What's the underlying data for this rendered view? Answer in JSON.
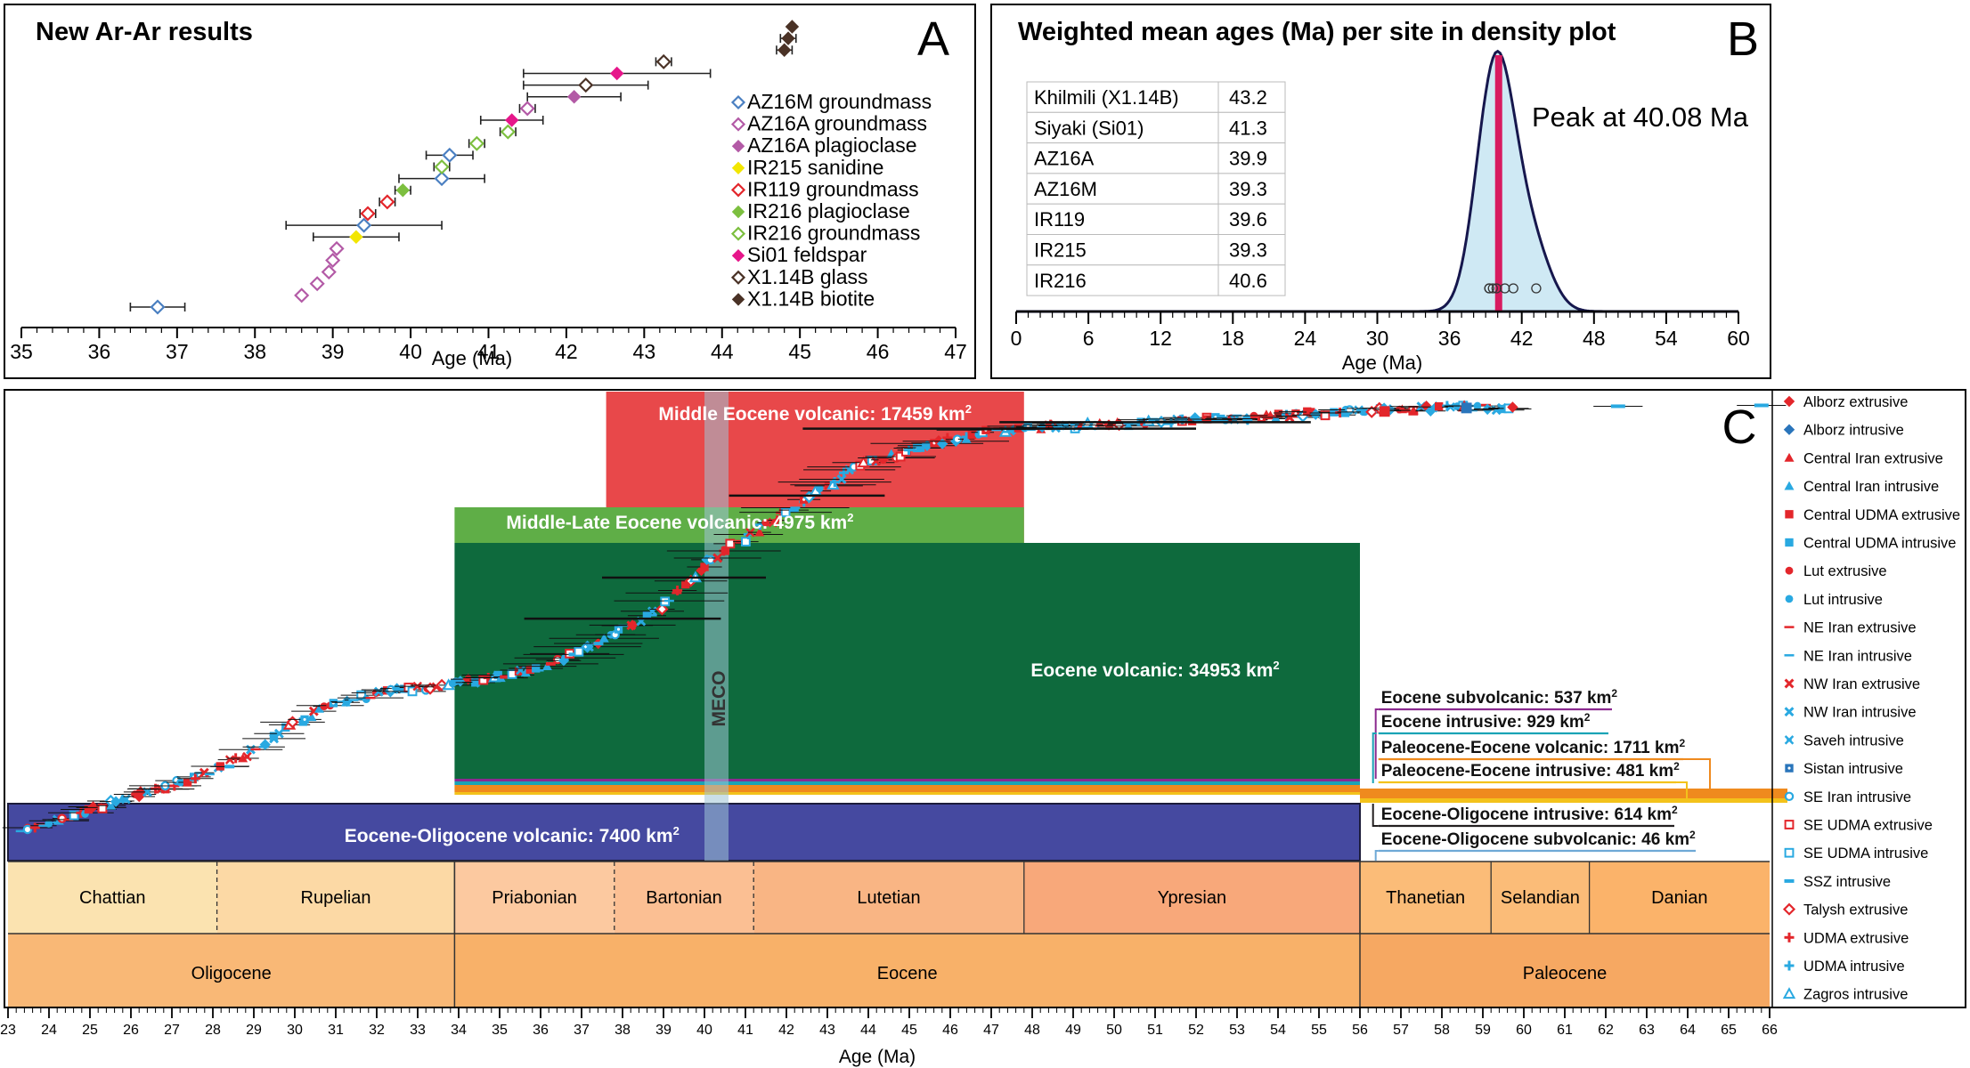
{
  "chart_data": [
    {
      "panel_letter": "A",
      "type": "scatter",
      "title": "New Ar-Ar results",
      "xlabel": "Age (Ma)",
      "ylabel": "",
      "xlim": [
        35,
        47
      ],
      "xticks": [
        "35",
        "36",
        "37",
        "38",
        "39",
        "40",
        "41",
        "42",
        "43",
        "44",
        "45",
        "46",
        "47"
      ],
      "legend_position": "right",
      "series": [
        {
          "name": "AZ16M groundmass",
          "color": "#4a7fc1",
          "marker": "diamond-open",
          "points": [
            {
              "x": 36.75,
              "err": 0.35
            },
            {
              "x": 39.4,
              "err": 1.0
            },
            {
              "x": 40.4,
              "err": 0.55
            },
            {
              "x": 40.5,
              "err": 0.3
            }
          ]
        },
        {
          "name": "AZ16A groundmass",
          "color": "#b35aa6",
          "marker": "diamond-open",
          "points": [
            {
              "x": 38.6,
              "err": 0.05
            },
            {
              "x": 38.8,
              "err": 0.05
            },
            {
              "x": 38.95,
              "err": 0.05
            },
            {
              "x": 39.0,
              "err": 0.05
            },
            {
              "x": 39.05,
              "err": 0.05
            },
            {
              "x": 41.5,
              "err": 0.1
            }
          ]
        },
        {
          "name": "AZ16A plagioclase",
          "color": "#b35aa6",
          "marker": "diamond",
          "points": [
            {
              "x": 42.1,
              "err": 0.6
            }
          ]
        },
        {
          "name": "IR215 sanidine",
          "color": "#f2e600",
          "marker": "diamond",
          "points": [
            {
              "x": 39.3,
              "err": 0.55
            }
          ]
        },
        {
          "name": "IR119 groundmass",
          "color": "#e3262b",
          "marker": "diamond-open",
          "points": [
            {
              "x": 39.45,
              "err": 0.1
            },
            {
              "x": 39.7,
              "err": 0.1
            }
          ]
        },
        {
          "name": "IR216 plagioclase",
          "color": "#7cbf3f",
          "marker": "diamond",
          "points": [
            {
              "x": 39.9,
              "err": 0.1
            }
          ]
        },
        {
          "name": "IR216 groundmass",
          "color": "#7cbf3f",
          "marker": "diamond-open",
          "points": [
            {
              "x": 40.4,
              "err": 0.1
            },
            {
              "x": 40.85,
              "err": 0.1
            },
            {
              "x": 41.25,
              "err": 0.1
            }
          ]
        },
        {
          "name": "Si01 feldspar",
          "color": "#e6168a",
          "marker": "diamond",
          "points": [
            {
              "x": 41.3,
              "err": 0.4
            },
            {
              "x": 42.65,
              "err": 1.2
            }
          ]
        },
        {
          "name": "X1.14B glass",
          "color": "#4a3226",
          "marker": "diamond-open",
          "points": [
            {
              "x": 42.25,
              "err": 0.8
            },
            {
              "x": 43.25,
              "err": 0.1
            }
          ]
        },
        {
          "name": "X1.14B biotite",
          "color": "#4a3226",
          "marker": "diamond",
          "points": [
            {
              "x": 44.8,
              "err": 0.1
            },
            {
              "x": 44.85,
              "err": 0.1
            },
            {
              "x": 44.9,
              "err": 0.05
            }
          ]
        }
      ]
    },
    {
      "panel_letter": "B",
      "type": "area",
      "title": "Weighted mean ages (Ma) per site in density plot",
      "xlabel": "Age (Ma)",
      "ylabel": "",
      "xlim": [
        0,
        60
      ],
      "xticks": [
        "0",
        "6",
        "12",
        "18",
        "24",
        "30",
        "36",
        "42",
        "48",
        "54",
        "60"
      ],
      "peak_label": "Peak at 40.08 Ma",
      "peak_value": 40.08,
      "curve_fill": "#cfe9f4",
      "curve_stroke": "#16174d",
      "peak_color": "#d81b60",
      "table": [
        {
          "site": "Khilmili (X1.14B)",
          "age": "43.2"
        },
        {
          "site": "Siyaki (Si01)",
          "age": "41.3"
        },
        {
          "site": "AZ16A",
          "age": "39.9"
        },
        {
          "site": "AZ16M",
          "age": "39.3"
        },
        {
          "site": "IR119",
          "age": "39.6"
        },
        {
          "site": "IR215",
          "age": "39.3"
        },
        {
          "site": "IR216",
          "age": "40.6"
        }
      ],
      "ages": [
        43.2,
        41.3,
        39.9,
        39.3,
        39.6,
        39.3,
        40.6
      ]
    },
    {
      "panel_letter": "C",
      "type": "scatter",
      "title": "",
      "xlabel": "Age (Ma)",
      "ylabel": "",
      "xlim": [
        23,
        66
      ],
      "xticks": [
        "23",
        "24",
        "25",
        "26",
        "27",
        "28",
        "29",
        "30",
        "31",
        "32",
        "33",
        "34",
        "35",
        "36",
        "37",
        "38",
        "39",
        "40",
        "41",
        "42",
        "43",
        "44",
        "45",
        "46",
        "47",
        "48",
        "49",
        "50",
        "51",
        "52",
        "53",
        "54",
        "55",
        "56",
        "57",
        "58",
        "59",
        "60",
        "61",
        "62",
        "63",
        "64",
        "65",
        "66"
      ],
      "meco_label": "MECO",
      "meco_range": [
        40.0,
        40.5
      ],
      "volcanic_areas": [
        {
          "label": "Middle Eocene volcanic: 17459 km",
          "sup": "2",
          "from": 37.6,
          "to": 47.8,
          "color": "#e8484a"
        },
        {
          "label": "Middle-Late Eocene volcanic: 4975 km",
          "sup": "2",
          "from": 33.9,
          "to": 47.8,
          "color": "#5fae47"
        },
        {
          "label": "Eocene volcanic: 34953 km",
          "sup": "2",
          "from": 33.9,
          "to": 56.0,
          "color": "#0e6a3d"
        },
        {
          "label": "Eocene-Oligocene volcanic: 7400 km",
          "sup": "2",
          "from": 23.0,
          "to": 56.0,
          "color": "#4549a0"
        }
      ],
      "small_areas": [
        {
          "label": "Eocene subvolcanic: 537 km",
          "sup": "2",
          "color": "#8b2a8f"
        },
        {
          "label": "Eocene intrusive: 929 km",
          "sup": "2",
          "color": "#1aa3b5"
        },
        {
          "label": "Paleocene-Eocene volcanic: 1711 km",
          "sup": "2",
          "color": "#ef8a1e"
        },
        {
          "label": "Paleocene-Eocene intrusive: 481 km",
          "sup": "2",
          "color": "#f3c21b"
        },
        {
          "label": "Eocene-Oligocene intrusive: 614 km",
          "sup": "2",
          "color": "#231f20"
        },
        {
          "label": "Eocene-Oligocene subvolcanic: 46 km",
          "sup": "2",
          "color": "#6ea9d6"
        }
      ],
      "stages": [
        {
          "name": "Chattian",
          "from": 23.0,
          "to": 28.1,
          "color": "#fbe3b0"
        },
        {
          "name": "Rupelian",
          "from": 28.1,
          "to": 33.9,
          "color": "#fcd9a5"
        },
        {
          "name": "Priabonian",
          "from": 33.9,
          "to": 37.8,
          "color": "#fcc9a0"
        },
        {
          "name": "Bartonian",
          "from": 37.8,
          "to": 41.2,
          "color": "#fbbf93"
        },
        {
          "name": "Lutetian",
          "from": 41.2,
          "to": 47.8,
          "color": "#f9b584"
        },
        {
          "name": "Ypresian",
          "from": 47.8,
          "to": 56.0,
          "color": "#f8a87a"
        },
        {
          "name": "Thanetian",
          "from": 56.0,
          "to": 59.2,
          "color": "#fbbc78"
        },
        {
          "name": "Selandian",
          "from": 59.2,
          "to": 61.6,
          "color": "#fbbc78"
        },
        {
          "name": "Danian",
          "from": 61.6,
          "to": 66.0,
          "color": "#fbb36a"
        }
      ],
      "epochs": [
        {
          "name": "Oligocene",
          "from": 23.0,
          "to": 33.9,
          "color": "#f9b876"
        },
        {
          "name": "Eocene",
          "from": 33.9,
          "to": 56.0,
          "color": "#f8b169"
        },
        {
          "name": "Paleocene",
          "from": 56.0,
          "to": 66.0,
          "color": "#f6a862"
        }
      ],
      "legend_position": "right",
      "legend": [
        {
          "name": "Alborz extrusive",
          "color": "#e3262b",
          "marker": "diamond"
        },
        {
          "name": "Alborz intrusive",
          "color": "#2a75bb",
          "marker": "diamond"
        },
        {
          "name": "Central Iran extrusive",
          "color": "#e3262b",
          "marker": "triangle"
        },
        {
          "name": "Central Iran intrusive",
          "color": "#29a9e1",
          "marker": "triangle"
        },
        {
          "name": "Central UDMA extrusive",
          "color": "#e3262b",
          "marker": "square"
        },
        {
          "name": "Central UDMA intrusive",
          "color": "#29a9e1",
          "marker": "square"
        },
        {
          "name": "Lut extrusive",
          "color": "#e3262b",
          "marker": "circle"
        },
        {
          "name": "Lut intrusive",
          "color": "#29a9e1",
          "marker": "circle"
        },
        {
          "name": "NE Iran extrusive",
          "color": "#e3262b",
          "marker": "dash"
        },
        {
          "name": "NE Iran intrusive",
          "color": "#29a9e1",
          "marker": "dash"
        },
        {
          "name": "NW Iran extrusive",
          "color": "#e3262b",
          "marker": "x"
        },
        {
          "name": "NW Iran intrusive",
          "color": "#29a9e1",
          "marker": "x"
        },
        {
          "name": "Saveh intrusive",
          "color": "#29a9e1",
          "marker": "star"
        },
        {
          "name": "Sistan intrusive",
          "color": "#2a75bb",
          "marker": "square-dot"
        },
        {
          "name": "SE Iran intrusive",
          "color": "#29a9e1",
          "marker": "circle-open"
        },
        {
          "name": "SE UDMA extrusive",
          "color": "#e3262b",
          "marker": "square-open"
        },
        {
          "name": "SE UDMA intrusive",
          "color": "#29a9e1",
          "marker": "square-open"
        },
        {
          "name": "SSZ intrusive",
          "color": "#29a9e1",
          "marker": "bar"
        },
        {
          "name": "Talysh extrusive",
          "color": "#e3262b",
          "marker": "diamond-open"
        },
        {
          "name": "UDMA extrusive",
          "color": "#e3262b",
          "marker": "plus"
        },
        {
          "name": "UDMA intrusive",
          "color": "#29a9e1",
          "marker": "plus"
        },
        {
          "name": "Zagros intrusive",
          "color": "#29a9e1",
          "marker": "triangle-open"
        }
      ],
      "trend_points": [
        [
          23.2,
          0.01
        ],
        [
          24.0,
          0.03
        ],
        [
          25.0,
          0.06
        ],
        [
          26.0,
          0.09
        ],
        [
          27.0,
          0.12
        ],
        [
          28.0,
          0.15
        ],
        [
          29.0,
          0.2
        ],
        [
          30.0,
          0.26
        ],
        [
          31.0,
          0.31
        ],
        [
          32.0,
          0.33
        ],
        [
          33.5,
          0.35
        ],
        [
          35.0,
          0.37
        ],
        [
          36.0,
          0.39
        ],
        [
          37.0,
          0.43
        ],
        [
          38.0,
          0.48
        ],
        [
          38.8,
          0.52
        ],
        [
          39.5,
          0.58
        ],
        [
          40.0,
          0.63
        ],
        [
          40.8,
          0.68
        ],
        [
          41.8,
          0.74
        ],
        [
          43.0,
          0.81
        ],
        [
          44.0,
          0.87
        ],
        [
          45.0,
          0.89
        ],
        [
          46.0,
          0.92
        ],
        [
          47.0,
          0.94
        ],
        [
          48.5,
          0.95
        ],
        [
          50.0,
          0.955
        ],
        [
          52.0,
          0.965
        ],
        [
          54.0,
          0.975
        ],
        [
          56.0,
          0.985
        ],
        [
          57.0,
          0.99
        ],
        [
          58.5,
          0.993
        ],
        [
          59.8,
          0.995
        ]
      ],
      "outliers": [
        [
          62.3,
          0.997
        ],
        [
          65.8,
          0.999
        ]
      ]
    }
  ]
}
